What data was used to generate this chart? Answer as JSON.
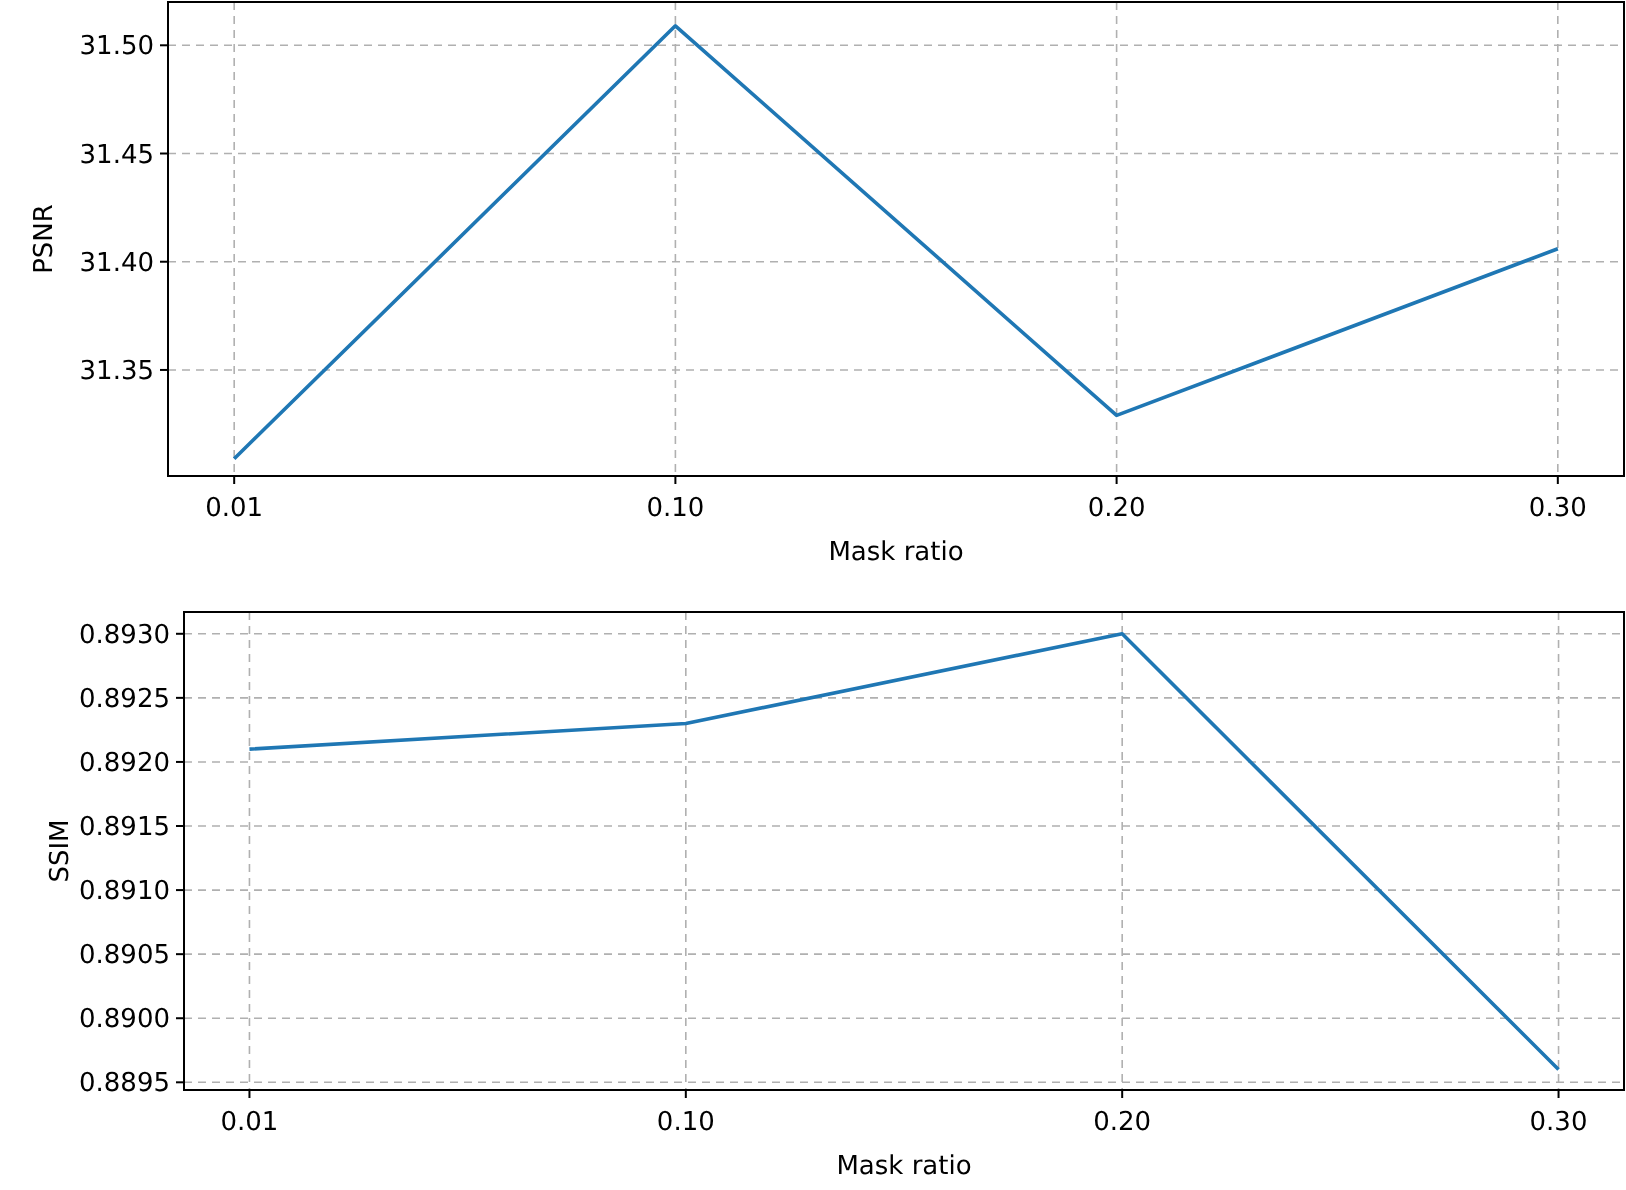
{
  "chart_data": [
    {
      "type": "line",
      "xlabel": "Mask ratio",
      "ylabel": "PSNR",
      "categories": [
        "0.01",
        "0.10",
        "0.20",
        "0.30"
      ],
      "series": [
        {
          "color": "#1f77b4",
          "values": [
            31.309,
            31.509,
            31.329,
            31.406
          ]
        }
      ],
      "ylim": [
        31.301,
        31.52
      ],
      "yticks": [
        {
          "value": 31.35,
          "label": "31.35"
        },
        {
          "value": 31.4,
          "label": "31.40"
        },
        {
          "value": 31.45,
          "label": "31.45"
        },
        {
          "value": 31.5,
          "label": "31.50"
        }
      ],
      "grid": true
    },
    {
      "type": "line",
      "xlabel": "Mask ratio",
      "ylabel": "SSIM",
      "categories": [
        "0.01",
        "0.10",
        "0.20",
        "0.30"
      ],
      "series": [
        {
          "color": "#1f77b4",
          "values": [
            0.8921,
            0.8923,
            0.893,
            0.8896
          ]
        }
      ],
      "ylim": [
        0.88944,
        0.89317
      ],
      "yticks": [
        {
          "value": 0.8895,
          "label": "0.8895"
        },
        {
          "value": 0.89,
          "label": "0.8900"
        },
        {
          "value": 0.8905,
          "label": "0.8905"
        },
        {
          "value": 0.891,
          "label": "0.8910"
        },
        {
          "value": 0.8915,
          "label": "0.8915"
        },
        {
          "value": 0.892,
          "label": "0.8920"
        },
        {
          "value": 0.8925,
          "label": "0.8925"
        },
        {
          "value": 0.893,
          "label": "0.8930"
        }
      ],
      "grid": true
    }
  ]
}
